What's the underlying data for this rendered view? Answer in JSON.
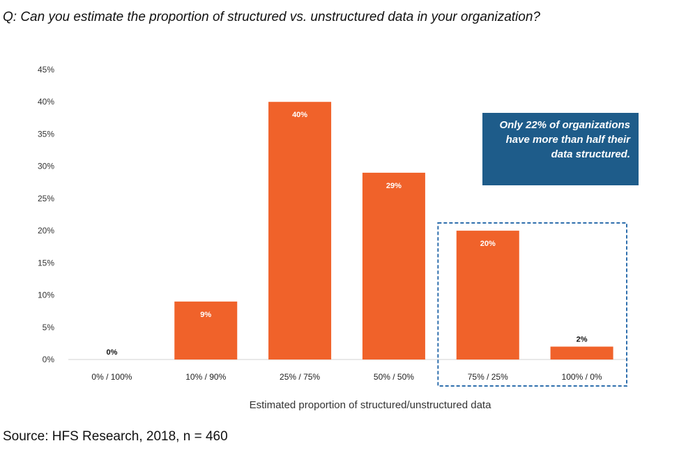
{
  "question": "Q: Can you estimate the proportion of structured vs. unstructured data in your organization?",
  "source": "Source: HFS Research, 2018, n = 460",
  "callout": {
    "text": "Only 22% of organizations have more than half their data structured.",
    "bg_color": "#1e5c8a"
  },
  "chart_data": {
    "type": "bar",
    "categories": [
      "0% / 100%",
      "10% / 90%",
      "25% / 75%",
      "50% / 50%",
      "75% / 25%",
      "100% / 0%"
    ],
    "values": [
      0,
      9,
      40,
      29,
      20,
      2
    ],
    "data_labels": [
      "0%",
      "9%",
      "40%",
      "29%",
      "20%",
      "2%"
    ],
    "xlabel": "Estimated proportion of structured/unstructured data",
    "ylabel": "",
    "ylim": [
      0,
      45
    ],
    "yticks": [
      0,
      5,
      10,
      15,
      20,
      25,
      30,
      35,
      40,
      45
    ],
    "ytick_labels": [
      "0%",
      "5%",
      "10%",
      "15%",
      "20%",
      "25%",
      "30%",
      "35%",
      "40%",
      "45%"
    ],
    "bar_color": "#f0622a",
    "highlight_categories": [
      "75% / 25%",
      "100% / 0%"
    ],
    "highlight_color": "#2f6fad",
    "grid": false
  }
}
